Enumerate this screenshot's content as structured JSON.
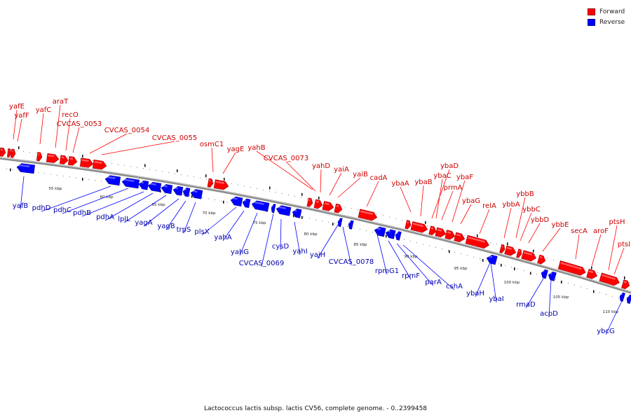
{
  "legend": {
    "forward_label": "Forward",
    "reverse_label": "Reverse",
    "forward_color": "#ff0000",
    "reverse_color": "#0000ff"
  },
  "caption": "Lactococcus lactis subsp. lactis CV56, complete genome. - 0..2399458",
  "scale_ticks": [
    "55 kbp",
    "60 kbp",
    "65 kbp",
    "70 kbp",
    "75 kbp",
    "80 kbp",
    "85 kbp",
    "90 kbp",
    "95 kbp",
    "100 kbp",
    "105 kbp",
    "110 kbp"
  ],
  "forward_genes": [
    "yafE",
    "yafF",
    "yafC",
    "araT",
    "recO",
    "CVCAS_0053",
    "CVCAS_0054",
    "CVCAS_0055",
    "osmC1",
    "yagE",
    "yahB",
    "CVCAS_0073",
    "yahD",
    "yaiA",
    "yaiB",
    "cadA",
    "ybaA",
    "ybaB",
    "ybaD",
    "ybaC",
    "prmA",
    "ybaF",
    "ybaG",
    "relA",
    "ybbB",
    "ybbA",
    "ybbC",
    "ybbD",
    "ybbE",
    "secA",
    "aroF",
    "ptsH",
    "ptsI"
  ],
  "reverse_genes": [
    "yafB",
    "pdhD",
    "pdhC",
    "pdhB",
    "pdhA",
    "lplL",
    "yagA",
    "yagB",
    "trpS",
    "plsX",
    "yahA",
    "yahG",
    "CVCAS_0069",
    "cysD",
    "yahI",
    "yajH",
    "CVCAS_0078",
    "rpmG1",
    "rpmF",
    "parA",
    "cshA",
    "ybaH",
    "ybaI",
    "rmaD",
    "acpD",
    "ybcG"
  ]
}
